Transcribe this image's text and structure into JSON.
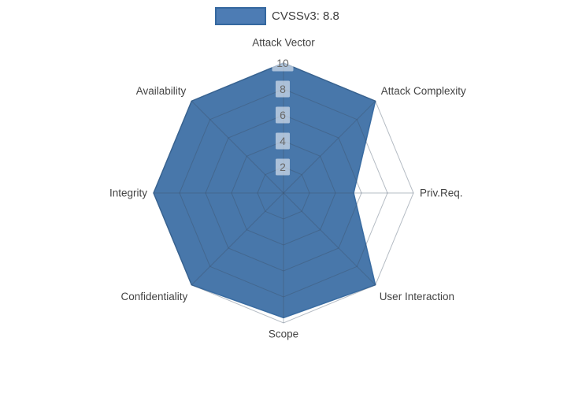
{
  "legend": {
    "label": "CVSSv3: 8.8",
    "swatch_fill": "#4d7cb4",
    "swatch_border": "#35689f"
  },
  "chart_data": {
    "type": "radar",
    "title": "CVSSv3: 8.8",
    "categories": [
      "Attack Vector",
      "Attack Complexity",
      "Priv.Req.",
      "User Interaction",
      "Scope",
      "Confidentiality",
      "Integrity",
      "Availability"
    ],
    "series": [
      {
        "name": "CVSSv3: 8.8",
        "values": [
          10,
          10,
          5.4,
          10,
          9.6,
          10,
          10,
          10
        ]
      }
    ],
    "radial_ticks": [
      2,
      4,
      6,
      8,
      10
    ],
    "range": [
      0,
      10
    ],
    "grid_shape": "spider-octagon",
    "legend_position": "top-center",
    "fill_color": "#2f649e",
    "fill_opacity": 0.88,
    "line_color": "#35689f",
    "grid_color": "rgba(60,80,100,0.38)",
    "axis_label_color": "#434343",
    "tick_label_color": "#696969",
    "tick_bg_color": "rgba(255,255,255,0.55)"
  }
}
